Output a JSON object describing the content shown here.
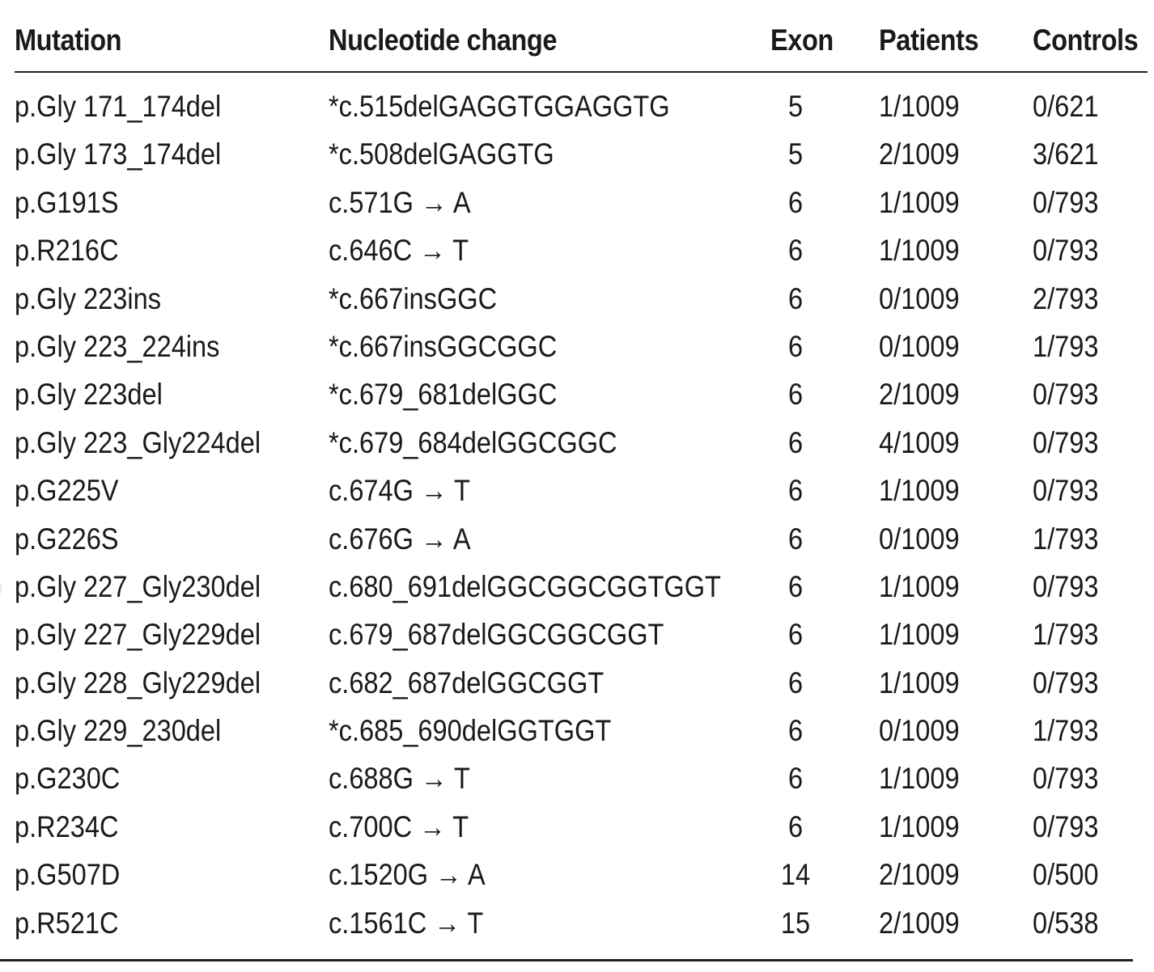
{
  "table": {
    "headers": {
      "mutation": "Mutation",
      "nucleotide": "Nucleotide change",
      "exon": "Exon",
      "patients": "Patients",
      "controls": "Controls"
    },
    "rows": [
      {
        "mutation": "p.Gly 171_174del",
        "nucleotide": "*c.515delGAGGTGGAGGTG",
        "exon": "5",
        "patients": "1/1009",
        "controls": "0/621"
      },
      {
        "mutation": "p.Gly 173_174del",
        "nucleotide": "*c.508delGAGGTG",
        "exon": "5",
        "patients": "2/1009",
        "controls": "3/621"
      },
      {
        "mutation": "p.G191S",
        "nucleotide": "c.571G → A",
        "exon": "6",
        "patients": "1/1009",
        "controls": "0/793"
      },
      {
        "mutation": "p.R216C",
        "nucleotide": "c.646C → T",
        "exon": "6",
        "patients": "1/1009",
        "controls": "0/793"
      },
      {
        "mutation": "p.Gly 223ins",
        "nucleotide": "*c.667insGGC",
        "exon": "6",
        "patients": "0/1009",
        "controls": "2/793"
      },
      {
        "mutation": "p.Gly 223_224ins",
        "nucleotide": "*c.667insGGCGGC",
        "exon": "6",
        "patients": "0/1009",
        "controls": "1/793"
      },
      {
        "mutation": "p.Gly 223del",
        "nucleotide": "*c.679_681delGGC",
        "exon": "6",
        "patients": "2/1009",
        "controls": "0/793"
      },
      {
        "mutation": "p.Gly 223_Gly224del",
        "nucleotide": "*c.679_684delGGCGGC",
        "exon": "6",
        "patients": "4/1009",
        "controls": "0/793"
      },
      {
        "mutation": "p.G225V",
        "nucleotide": "c.674G → T",
        "exon": "6",
        "patients": "1/1009",
        "controls": "0/793"
      },
      {
        "mutation": "p.G226S",
        "nucleotide": "c.676G → A",
        "exon": "6",
        "patients": "0/1009",
        "controls": "1/793"
      },
      {
        "mutation": "p.Gly 227_Gly230del",
        "nucleotide": "c.680_691delGGCGGCGGTGGT",
        "exon": "6",
        "patients": "1/1009",
        "controls": "0/793"
      },
      {
        "mutation": "p.Gly 227_Gly229del",
        "nucleotide": "c.679_687delGGCGGCGGT",
        "exon": "6",
        "patients": "1/1009",
        "controls": "1/793"
      },
      {
        "mutation": "p.Gly 228_Gly229del",
        "nucleotide": "c.682_687delGGCGGT",
        "exon": "6",
        "patients": "1/1009",
        "controls": "0/793"
      },
      {
        "mutation": "p.Gly 229_230del",
        "nucleotide": "*c.685_690delGGTGGT",
        "exon": "6",
        "patients": "0/1009",
        "controls": "1/793"
      },
      {
        "mutation": "p.G230C",
        "nucleotide": "c.688G → T",
        "exon": "6",
        "patients": "1/1009",
        "controls": "0/793"
      },
      {
        "mutation": "p.R234C",
        "nucleotide": "c.700C → T",
        "exon": "6",
        "patients": "1/1009",
        "controls": "0/793"
      },
      {
        "mutation": "p.G507D",
        "nucleotide": "c.1520G → A",
        "exon": "14",
        "patients": "2/1009",
        "controls": "0/500"
      },
      {
        "mutation": "p.R521C",
        "nucleotide": "c.1561C → T",
        "exon": "15",
        "patients": "2/1009",
        "controls": "0/538"
      }
    ]
  }
}
